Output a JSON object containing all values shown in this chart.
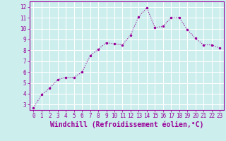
{
  "x": [
    0,
    1,
    2,
    3,
    4,
    5,
    6,
    7,
    8,
    9,
    10,
    11,
    12,
    13,
    14,
    15,
    16,
    17,
    18,
    19,
    20,
    21,
    22,
    23
  ],
  "y": [
    2.7,
    3.9,
    4.5,
    5.3,
    5.5,
    5.5,
    6.0,
    7.5,
    8.1,
    8.7,
    8.6,
    8.5,
    9.4,
    11.1,
    11.9,
    10.1,
    10.2,
    11.0,
    11.0,
    9.9,
    9.1,
    8.5,
    8.5,
    8.2
  ],
  "line_color": "#990099",
  "marker": ".",
  "marker_size": 3,
  "background_color": "#cceeed",
  "grid_color": "#aadddd",
  "xlabel": "Windchill (Refroidissement éolien,°C)",
  "ylim": [
    2.5,
    12.5
  ],
  "xlim": [
    -0.5,
    23.5
  ],
  "yticks": [
    3,
    4,
    5,
    6,
    7,
    8,
    9,
    10,
    11,
    12
  ],
  "xticks": [
    0,
    1,
    2,
    3,
    4,
    5,
    6,
    7,
    8,
    9,
    10,
    11,
    12,
    13,
    14,
    15,
    16,
    17,
    18,
    19,
    20,
    21,
    22,
    23
  ],
  "tick_color": "#990099",
  "label_color": "#990099",
  "tick_fontsize": 5.5,
  "xlabel_fontsize": 7.0,
  "spine_color": "#990099"
}
